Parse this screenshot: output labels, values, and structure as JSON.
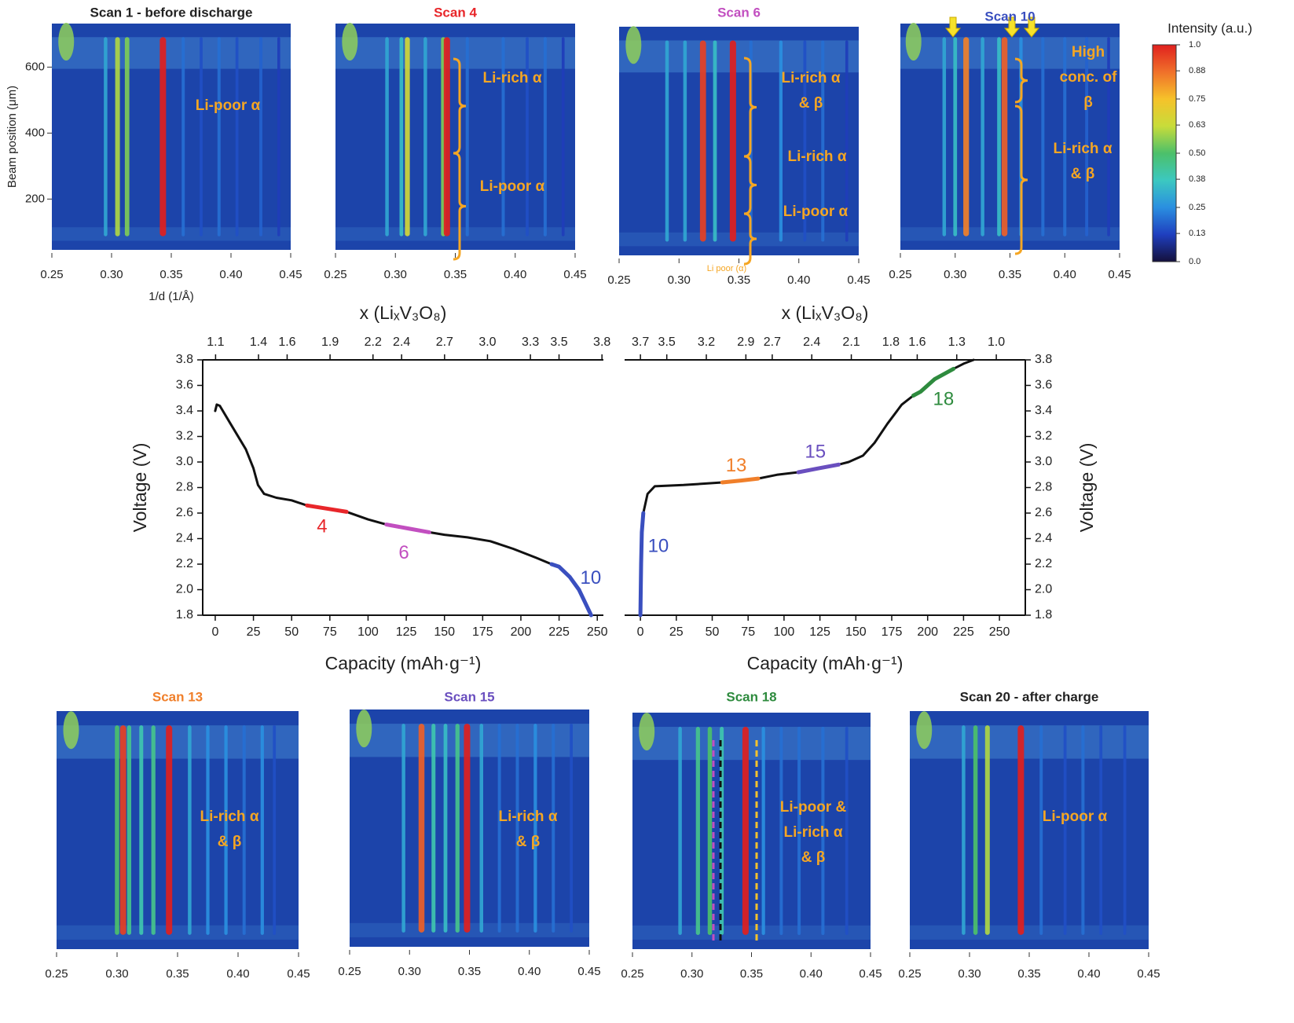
{
  "chart_data": [
    {
      "type": "heatmap",
      "title": "Scan 1 - before discharge",
      "title_color": "#222222",
      "xlabel": "1/d (1/Å)",
      "ylabel": "Beam position (μm)",
      "xlim": [
        0.25,
        0.45
      ],
      "xticks": [
        0.25,
        {
          "value": 0.3,
          "label": "0.30"
        },
        0.35,
        {
          "value": 0.4,
          "label": "0.40"
        },
        0.45
      ],
      "ylim": [
        46,
        732
      ],
      "yticks": [
        200,
        400,
        600
      ],
      "peaks": {
        "x": [
          0.295,
          0.305,
          0.313,
          0.343,
          0.36,
          0.375,
          0.39,
          0.405,
          0.425,
          0.44
        ],
        "values": [
          0.3,
          0.6,
          0.55,
          1.0,
          0.2,
          0.15,
          0.2,
          0.15,
          0.18,
          0.12
        ]
      },
      "annotations": [
        [
          "Li-poor α"
        ]
      ]
    },
    {
      "type": "heatmap",
      "title": "Scan 4",
      "title_color": "#e8262a",
      "xlim": [
        0.25,
        0.45
      ],
      "xticks": [
        0.25,
        {
          "value": 0.3,
          "label": "0.30"
        },
        0.35,
        {
          "value": 0.4,
          "label": "0.40"
        },
        0.45
      ],
      "peaks": {
        "x": [
          0.293,
          0.305,
          0.31,
          0.325,
          0.34,
          0.343,
          0.36,
          0.39,
          0.41,
          0.425,
          0.44
        ],
        "values": [
          0.3,
          0.35,
          0.65,
          0.3,
          0.55,
          1.0,
          0.2,
          0.2,
          0.15,
          0.2,
          0.12
        ]
      },
      "annotations": [
        [
          "Li-rich α"
        ],
        [
          "Li-poor α"
        ]
      ]
    },
    {
      "type": "heatmap",
      "title": "Scan 6",
      "title_color": "#c24fc0",
      "xlim": [
        0.25,
        0.45
      ],
      "xticks": [
        0.25,
        {
          "value": 0.3,
          "label": "0.30"
        },
        0.35,
        {
          "value": 0.4,
          "label": "0.40"
        },
        0.45
      ],
      "peaks": {
        "x": [
          0.29,
          0.305,
          0.32,
          0.33,
          0.345,
          0.36,
          0.385,
          0.405,
          0.42,
          0.44
        ],
        "values": [
          0.3,
          0.3,
          0.95,
          0.35,
          1.0,
          0.2,
          0.25,
          0.15,
          0.2,
          0.12
        ]
      },
      "annotations": [
        [
          "Li-rich α",
          "& β"
        ],
        [
          "Li-rich α"
        ],
        [
          "Li-poor α"
        ],
        [
          "Li poor (α)"
        ]
      ]
    },
    {
      "type": "heatmap",
      "title": "Scan 10",
      "title_color": "#3a4fbf",
      "xlim": [
        0.25,
        0.45
      ],
      "xticks": [
        0.25,
        {
          "value": 0.3,
          "label": "0.30"
        },
        0.35,
        {
          "value": 0.4,
          "label": "0.40"
        },
        0.45
      ],
      "peaks": {
        "x": [
          0.29,
          0.3,
          0.31,
          0.325,
          0.34,
          0.345,
          0.36,
          0.38,
          0.4,
          0.42,
          0.44
        ],
        "values": [
          0.3,
          0.35,
          0.85,
          0.3,
          0.35,
          0.9,
          0.25,
          0.2,
          0.2,
          0.18,
          0.12
        ]
      },
      "annotations": [
        [
          "High",
          "conc. of",
          "β"
        ],
        [
          "Li-rich α",
          "& β"
        ]
      ]
    },
    {
      "type": "colorbar",
      "title": "Intensity (a.u.)",
      "ylim": [
        0,
        1
      ],
      "yticks": [
        {
          "value": 0,
          "label": "0.0"
        },
        0.13,
        0.25,
        0.38,
        {
          "value": 0.5,
          "label": "0.50"
        },
        0.63,
        0.75,
        0.88,
        {
          "value": 1,
          "label": "1.0"
        }
      ],
      "colors": [
        "#14103c",
        "#1f3fbf",
        "#2a8fe0",
        "#3cc8c0",
        "#4cc06a",
        "#c8dc3a",
        "#f6c22a",
        "#f0702a",
        "#e0201e"
      ]
    },
    {
      "type": "line",
      "xlabel": "Capacity (mAh·g⁻¹)",
      "ylabel": "Voltage (V)",
      "x2label": "x (LiₓV₃O₈)",
      "yaxis": "left",
      "xlim": [
        -8.2,
        254
      ],
      "xticks": [
        0,
        25,
        50,
        75,
        100,
        125,
        150,
        175,
        200,
        225,
        250
      ],
      "x2lim": [
        1.01,
        3.81
      ],
      "x2ticks": [
        1.1,
        1.4,
        1.6,
        1.9,
        2.2,
        2.4,
        2.7,
        {
          "value": 3,
          "label": "3.0"
        },
        3.3,
        3.5,
        3.8
      ],
      "ylim": [
        1.8,
        3.8
      ],
      "yticks": [
        1.8,
        {
          "value": 2,
          "label": "2.0"
        },
        2.2,
        2.4,
        2.6,
        2.8,
        {
          "value": 3,
          "label": "3.0"
        },
        3.2,
        3.4,
        3.6,
        3.8
      ],
      "series": [
        {
          "color": "#111111",
          "x": [
            0,
            1,
            3,
            10,
            20,
            25,
            28,
            32,
            40,
            50,
            60,
            73,
            86,
            100,
            112,
            126,
            140,
            150,
            165,
            180,
            195,
            210,
            220,
            225,
            232,
            238,
            242,
            246
          ],
          "values": [
            3.4,
            3.45,
            3.44,
            3.3,
            3.1,
            2.95,
            2.82,
            2.75,
            2.72,
            2.7,
            2.66,
            2.635,
            2.61,
            2.55,
            2.51,
            2.48,
            2.45,
            2.43,
            2.41,
            2.38,
            2.32,
            2.25,
            2.2,
            2.18,
            2.1,
            2.0,
            1.9,
            1.8
          ]
        },
        {
          "name": "4",
          "color": "#e8262a",
          "x": [
            60,
            73,
            86
          ],
          "values": [
            2.66,
            2.635,
            2.61
          ]
        },
        {
          "name": "6",
          "color": "#c24fc0",
          "x": [
            112,
            126,
            140
          ],
          "values": [
            2.51,
            2.48,
            2.45
          ]
        },
        {
          "name": "10",
          "color": "#3a4fbf",
          "x": [
            220,
            225,
            232,
            238,
            242,
            246
          ],
          "values": [
            2.2,
            2.18,
            2.1,
            2.0,
            1.9,
            1.8
          ]
        }
      ]
    },
    {
      "type": "line",
      "xlabel": "Capacity (mAh·g⁻¹)",
      "ylabel": "Voltage (V)",
      "x2label": "x (LiₓV₃O₈)",
      "yaxis": "right",
      "xlim": [
        -11,
        268
      ],
      "xticks": [
        0,
        25,
        50,
        75,
        100,
        125,
        150,
        175,
        200,
        225,
        250
      ],
      "x2lim": [
        3.82,
        0.78
      ],
      "x2ticks": [
        3.7,
        3.5,
        3.2,
        2.9,
        2.7,
        2.4,
        2.1,
        1.8,
        1.6,
        1.3,
        {
          "value": 1,
          "label": "1.0"
        }
      ],
      "ylim": [
        1.8,
        3.8
      ],
      "yticks": [
        1.8,
        {
          "value": 2,
          "label": "2.0"
        },
        2.2,
        2.4,
        2.6,
        2.8,
        {
          "value": 3,
          "label": "3.0"
        },
        3.2,
        3.4,
        3.6,
        3.8
      ],
      "series": [
        {
          "color": "#111111",
          "x": [
            0,
            0.5,
            1,
            2,
            5,
            10,
            30,
            57,
            70,
            82,
            95,
            110,
            124,
            138,
            145,
            155,
            163,
            172,
            182,
            190,
            195,
            205,
            218,
            225,
            232
          ],
          "values": [
            1.8,
            2.2,
            2.45,
            2.6,
            2.75,
            2.81,
            2.82,
            2.84,
            2.855,
            2.87,
            2.9,
            2.92,
            2.95,
            2.98,
            3.0,
            3.05,
            3.15,
            3.3,
            3.45,
            3.52,
            3.55,
            3.65,
            3.73,
            3.77,
            3.8
          ]
        },
        {
          "name": "10",
          "color": "#3a4fbf",
          "x": [
            0,
            0.5,
            1,
            2
          ],
          "values": [
            1.8,
            2.2,
            2.45,
            2.6
          ]
        },
        {
          "name": "13",
          "color": "#f07f2a",
          "x": [
            57,
            70,
            82
          ],
          "values": [
            2.84,
            2.855,
            2.87
          ]
        },
        {
          "name": "15",
          "color": "#6a4fbf",
          "x": [
            110,
            124,
            138
          ],
          "values": [
            2.92,
            2.95,
            2.98
          ]
        },
        {
          "name": "18",
          "color": "#2e8b3e",
          "x": [
            190,
            195,
            205,
            218
          ],
          "values": [
            3.52,
            3.55,
            3.65,
            3.73
          ]
        }
      ]
    },
    {
      "type": "heatmap",
      "title": "Scan 13",
      "title_color": "#f07f2a",
      "xlim": [
        0.25,
        0.45
      ],
      "xticks": [
        0.25,
        {
          "value": 0.3,
          "label": "0.30"
        },
        0.35,
        {
          "value": 0.4,
          "label": "0.40"
        },
        0.45
      ],
      "peaks": {
        "x": [
          0.3,
          0.305,
          0.31,
          0.32,
          0.33,
          0.343,
          0.36,
          0.375,
          0.39,
          0.405,
          0.42,
          0.43
        ],
        "values": [
          0.5,
          0.95,
          0.45,
          0.4,
          0.45,
          1.0,
          0.3,
          0.25,
          0.25,
          0.2,
          0.25,
          0.15
        ]
      },
      "annotations": [
        [
          "Li-rich α",
          "& β"
        ]
      ]
    },
    {
      "type": "heatmap",
      "title": "Scan 15",
      "title_color": "#6a4fbf",
      "xlim": [
        0.25,
        0.45
      ],
      "xticks": [
        0.25,
        {
          "value": 0.3,
          "label": "0.30"
        },
        0.35,
        {
          "value": 0.4,
          "label": "0.40"
        },
        0.45
      ],
      "peaks": {
        "x": [
          0.295,
          0.31,
          0.32,
          0.33,
          0.34,
          0.348,
          0.36,
          0.375,
          0.39,
          0.405,
          0.42,
          0.435
        ],
        "values": [
          0.3,
          0.9,
          0.4,
          0.35,
          0.45,
          1.0,
          0.3,
          0.2,
          0.2,
          0.25,
          0.2,
          0.15
        ]
      },
      "annotations": [
        [
          "Li-rich α",
          "& β"
        ]
      ]
    },
    {
      "type": "heatmap",
      "title": "Scan 18",
      "title_color": "#2e8b3e",
      "xlim": [
        0.25,
        0.45
      ],
      "xticks": [
        0.25,
        {
          "value": 0.3,
          "label": "0.30"
        },
        0.35,
        {
          "value": 0.4,
          "label": "0.40"
        },
        0.45
      ],
      "peaks": {
        "x": [
          0.29,
          0.305,
          0.315,
          0.325,
          0.345,
          0.36,
          0.375,
          0.39,
          0.41,
          0.43
        ],
        "values": [
          0.3,
          0.45,
          0.5,
          0.4,
          1.0,
          0.25,
          0.2,
          0.2,
          0.2,
          0.15
        ]
      },
      "annotations": [
        [
          "Li-poor &",
          "Li-rich α",
          "& β"
        ]
      ]
    },
    {
      "type": "heatmap",
      "title": "Scan 20 - after charge",
      "title_color": "#222222",
      "xlim": [
        0.25,
        0.45
      ],
      "xticks": [
        0.25,
        {
          "value": 0.3,
          "label": "0.30"
        },
        0.35,
        {
          "value": 0.4,
          "label": "0.40"
        },
        0.45
      ],
      "peaks": {
        "x": [
          0.295,
          0.305,
          0.315,
          0.343,
          0.36,
          0.38,
          0.395,
          0.41,
          0.43
        ],
        "values": [
          0.3,
          0.5,
          0.6,
          1.0,
          0.2,
          0.15,
          0.2,
          0.15,
          0.15
        ]
      },
      "annotations": [
        [
          "Li-poor α"
        ]
      ]
    }
  ]
}
